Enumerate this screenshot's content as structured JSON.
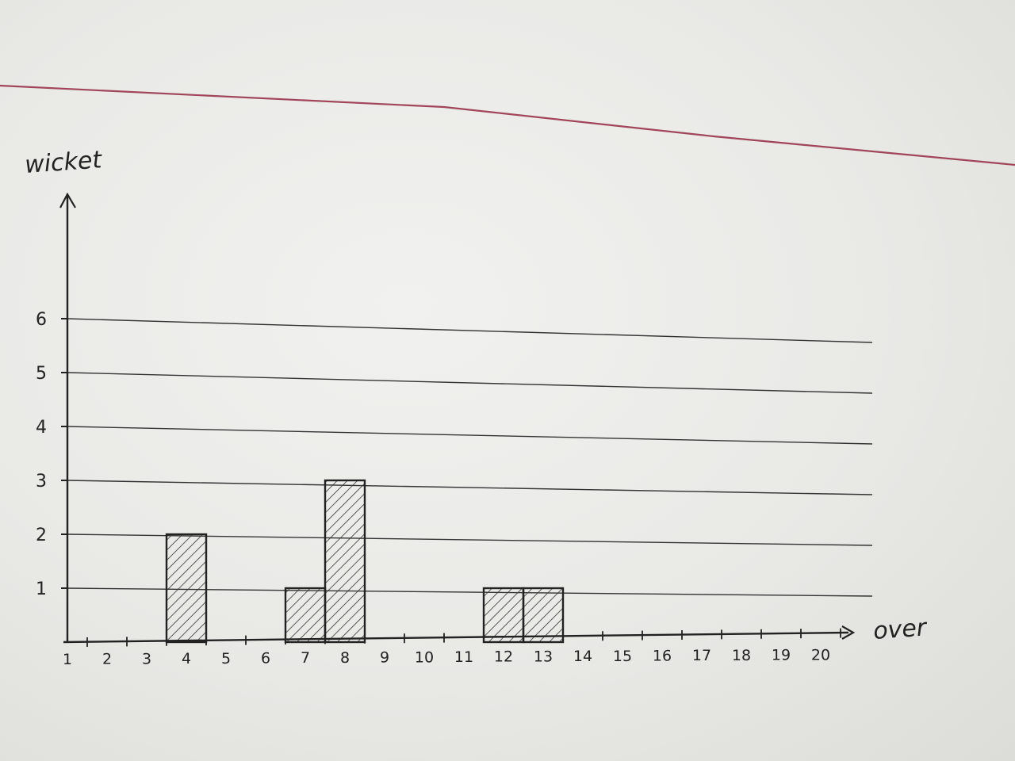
{
  "chart_data": {
    "type": "bar",
    "title": "",
    "xlabel": "over",
    "ylabel": "wicket",
    "categories": [
      "1",
      "2",
      "3",
      "4",
      "5",
      "6",
      "7",
      "8",
      "9",
      "10",
      "11",
      "12",
      "13",
      "14",
      "15",
      "16",
      "17",
      "18",
      "19",
      "20"
    ],
    "values": [
      0,
      0,
      0,
      2,
      0,
      0,
      1,
      3,
      0,
      0,
      0,
      1,
      1,
      0,
      0,
      0,
      0,
      0,
      0,
      0
    ],
    "yticks": [
      "1",
      "2",
      "3",
      "4",
      "5",
      "6"
    ],
    "ylim": [
      0,
      6
    ],
    "grid": true,
    "bar_style": "hatched",
    "colors": {
      "ink": "#222222",
      "margin_line": "#a0455a",
      "paper": "#eeeeec"
    }
  }
}
